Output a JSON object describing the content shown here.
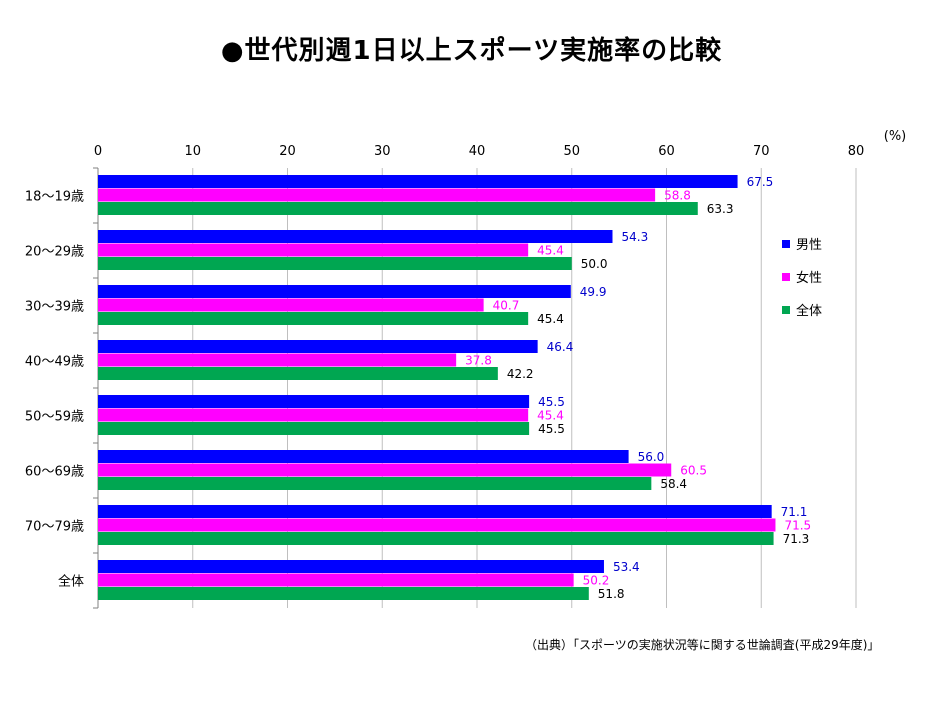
{
  "title": "●世代別週1日以上スポーツ実施率の比較",
  "source_note": "（出典）「スポーツの実施状況等に関する世論調査(平成29年度)」",
  "colors": {
    "male": "#0000ff",
    "female": "#ff00ff",
    "total": "#00a651",
    "grid": "#bfbfbf",
    "axis": "#808080"
  },
  "chart_data": {
    "type": "bar",
    "orientation": "horizontal",
    "unit_label": "(%)",
    "xlim": [
      0,
      80
    ],
    "ticks": [
      0,
      10,
      20,
      30,
      40,
      50,
      60,
      70,
      80
    ],
    "categories": [
      "18～19歳",
      "20～29歳",
      "30～39歳",
      "40～49歳",
      "50～59歳",
      "60～69歳",
      "70～79歳",
      "全体"
    ],
    "series": [
      {
        "name": "男性",
        "color": "#0000ff",
        "label_color": "#0000cc",
        "values": [
          67.5,
          54.3,
          49.9,
          46.4,
          45.5,
          56.0,
          71.1,
          53.4
        ],
        "labels": [
          "67.5",
          "54.3",
          "49.9",
          "46.4",
          "45.5",
          "56.0",
          "71.1",
          "53.4"
        ]
      },
      {
        "name": "女性",
        "color": "#ff00ff",
        "label_color": "#ff00ff",
        "values": [
          58.8,
          45.4,
          40.7,
          37.8,
          45.4,
          60.5,
          71.5,
          50.2
        ],
        "labels": [
          "58.8",
          "45.4",
          "40.7",
          "37.8",
          "45.4",
          "60.5",
          "71.5",
          "50.2"
        ]
      },
      {
        "name": "全体",
        "color": "#00a651",
        "label_color": "#000000",
        "values": [
          63.3,
          50.0,
          45.4,
          42.2,
          45.5,
          58.4,
          71.3,
          51.8
        ],
        "labels": [
          "63.3",
          "50.0",
          "45.4",
          "42.2",
          "45.5",
          "58.4",
          "71.3",
          "51.8"
        ]
      }
    ],
    "grid": true,
    "legend_position": "right"
  }
}
